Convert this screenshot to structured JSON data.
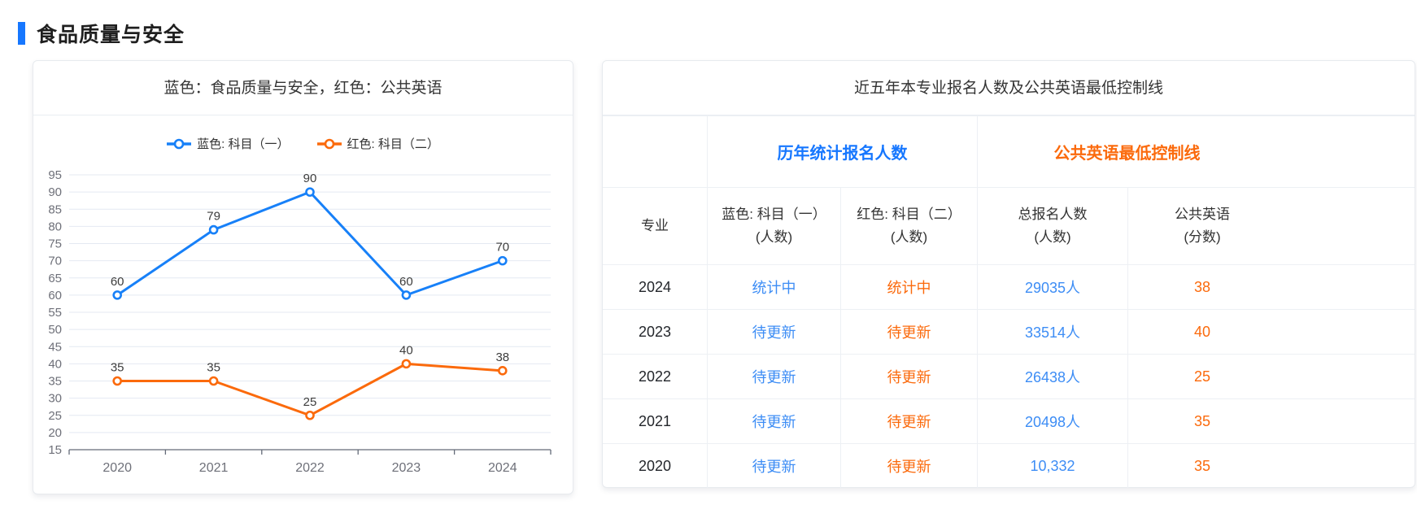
{
  "page": {
    "section_title": "食品质量与安全"
  },
  "colors": {
    "accent_blue": "#1677ff",
    "chart_blue": "#1780f8",
    "chart_orange": "#fb6a0c",
    "cell_blue": "#3d8df5",
    "cell_orange": "#fb6a0c"
  },
  "chart_panel": {
    "title": "蓝色：食品质量与安全，红色：公共英语",
    "legend": [
      {
        "label": "蓝色: 科目（一）",
        "color": "#1780f8"
      },
      {
        "label": "红色: 科目（二）",
        "color": "#fb6a0c"
      }
    ]
  },
  "chart_data": {
    "type": "line",
    "title": "蓝色：食品质量与安全，红色：公共英语",
    "categories": [
      "2020",
      "2021",
      "2022",
      "2023",
      "2024"
    ],
    "series": [
      {
        "name": "蓝色: 科目（一）",
        "color": "#1780f8",
        "values": [
          60,
          79,
          90,
          60,
          70
        ]
      },
      {
        "name": "红色: 科目（二）",
        "color": "#fb6a0c",
        "values": [
          35,
          35,
          25,
          40,
          38
        ]
      }
    ],
    "xlabel": "",
    "ylabel": "",
    "ylim": [
      15,
      95
    ],
    "ytick_step": 5,
    "grid": true,
    "legend_position": "top",
    "point_labels": true
  },
  "table_panel": {
    "title": "近五年本专业报名人数及公共英语最低控制线",
    "group_headers": [
      {
        "label": "历年统计报名人数",
        "color": "#1677ff"
      },
      {
        "label": "公共英语最低控制线",
        "color": "#fb6a0c"
      }
    ],
    "columns": [
      {
        "label": "专业",
        "sub": ""
      },
      {
        "label": "蓝色: 科目（一）",
        "sub": "(人数)"
      },
      {
        "label": "红色: 科目（二）",
        "sub": "(人数)"
      },
      {
        "label": "总报名人数",
        "sub": "(人数)"
      },
      {
        "label": "公共英语",
        "sub": "(分数)"
      }
    ],
    "rows": [
      {
        "year": "2024",
        "subject1": "统计中",
        "subject2": "统计中",
        "total": "29035人",
        "english": "38"
      },
      {
        "year": "2023",
        "subject1": "待更新",
        "subject2": "待更新",
        "total": "33514人",
        "english": "40"
      },
      {
        "year": "2022",
        "subject1": "待更新",
        "subject2": "待更新",
        "total": "26438人",
        "english": "25"
      },
      {
        "year": "2021",
        "subject1": "待更新",
        "subject2": "待更新",
        "total": "20498人",
        "english": "35"
      },
      {
        "year": "2020",
        "subject1": "待更新",
        "subject2": "待更新",
        "total": "10,332",
        "english": "35"
      }
    ]
  }
}
